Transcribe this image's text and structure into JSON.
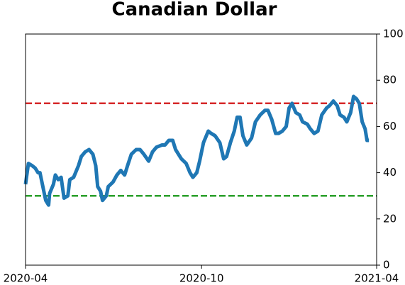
{
  "chart_data": {
    "type": "line",
    "title": "Canadian Dollar",
    "x": [
      0,
      3,
      7,
      10,
      13,
      15,
      18,
      21,
      24,
      25,
      29,
      31,
      34,
      37,
      40,
      44,
      46,
      50,
      55,
      58,
      62,
      66,
      70,
      73,
      75,
      78,
      80,
      84,
      86,
      91,
      95,
      99,
      103,
      106,
      110,
      115,
      119,
      123,
      128,
      132,
      136,
      142,
      145,
      149,
      153,
      156,
      162,
      167,
      171,
      174,
      178,
      181,
      185,
      190,
      193,
      197,
      202,
      206,
      209,
      213,
      217,
      220,
      223,
      226,
      230,
      235,
      239,
      244,
      249,
      252,
      256,
      260,
      263,
      267,
      271,
      274,
      277,
      281,
      285,
      288,
      293,
      296,
      300,
      304,
      308,
      313,
      316,
      320,
      324,
      327,
      331,
      334,
      338,
      341,
      344,
      347,
      350,
      353,
      355,
      357
    ],
    "series": [
      {
        "name": "Canadian Dollar",
        "color": "#1f77b4",
        "values": [
          35,
          44,
          43,
          42,
          40,
          40,
          34,
          28,
          26,
          31,
          35,
          39,
          37,
          38,
          29,
          30,
          37,
          38,
          43,
          47,
          49,
          50,
          48,
          43,
          34,
          32,
          28,
          30,
          34,
          36,
          39,
          41,
          39,
          43,
          48,
          50,
          50,
          48,
          45,
          49,
          51,
          52,
          52,
          54,
          54,
          50,
          46,
          44,
          40,
          38,
          40,
          45,
          53,
          58,
          57,
          56,
          53,
          46,
          47,
          53,
          58,
          64,
          64,
          56,
          52,
          55,
          62,
          65,
          67,
          67,
          63,
          57,
          57,
          58,
          60,
          68,
          70,
          66,
          65,
          62,
          61,
          59,
          57,
          58,
          65,
          68,
          69,
          71,
          69,
          65,
          64,
          62,
          66,
          73,
          72,
          70,
          62,
          59,
          54,
          54
        ]
      }
    ],
    "xlim": [
      0,
      365
    ],
    "xticks": [
      {
        "value": 0,
        "label": "2020-04"
      },
      {
        "value": 183,
        "label": "2020-10"
      },
      {
        "value": 365,
        "label": "2021-04"
      }
    ],
    "ylim": [
      0,
      100
    ],
    "yticks": [
      0,
      20,
      40,
      60,
      80,
      100
    ],
    "hlines": [
      {
        "value": 70,
        "color": "#d62728"
      },
      {
        "value": 30,
        "color": "#2ca02c"
      }
    ]
  }
}
